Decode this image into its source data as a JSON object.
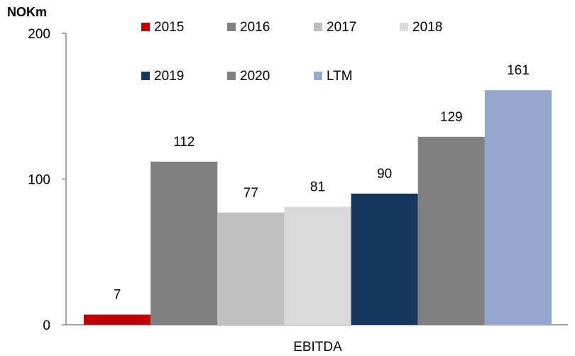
{
  "chart_data": {
    "type": "bar",
    "y_label": "NOKm",
    "categories": [
      "EBITDA"
    ],
    "series": [
      {
        "name": "2015",
        "color": "#c00000",
        "values": [
          7
        ]
      },
      {
        "name": "2016",
        "color": "#808080",
        "values": [
          112
        ]
      },
      {
        "name": "2017",
        "color": "#bfbfbf",
        "values": [
          77
        ]
      },
      {
        "name": "2018",
        "color": "#d9d9d9",
        "values": [
          81
        ]
      },
      {
        "name": "2019",
        "color": "#17375e",
        "values": [
          90
        ]
      },
      {
        "name": "2020",
        "color": "#808080",
        "values": [
          129
        ]
      },
      {
        "name": "LTM",
        "color": "#95a9d0",
        "values": [
          161
        ]
      }
    ],
    "ylim": [
      0,
      200
    ],
    "yticks": [
      0,
      100,
      200
    ],
    "legend": "top"
  }
}
